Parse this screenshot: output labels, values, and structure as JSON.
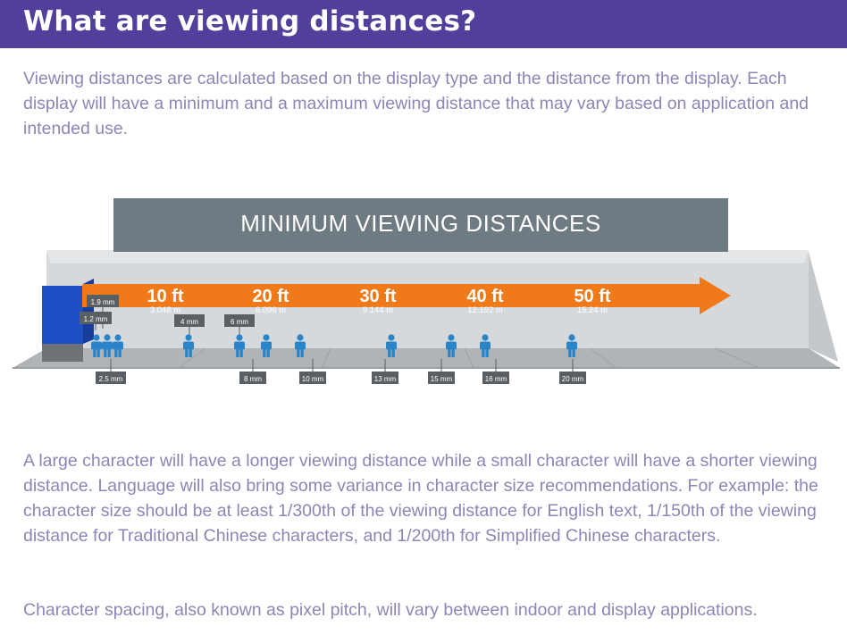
{
  "header": {
    "title": "What are viewing distances?"
  },
  "intro": "Viewing distances are calculated based on the display type and the distance from the display. Each display will have a minimum and a maximum viewing distance that may vary based on application and intended use.",
  "diagram": {
    "banner": "MINIMUM VIEWING DISTANCES",
    "distances": [
      {
        "ft": "10 ft",
        "m": "3.048 m"
      },
      {
        "ft": "20 ft",
        "m": "6.096 m"
      },
      {
        "ft": "30 ft",
        "m": "9.144 m"
      },
      {
        "ft": "40 ft",
        "m": "12.192 m"
      },
      {
        "ft": "50 ft",
        "m": "15.24 m"
      }
    ],
    "pitch_labels_upper": [
      "1.9 mm",
      "1.2 mm",
      "4 mm",
      "6 mm"
    ],
    "pitch_labels_lower": [
      "2.5 mm",
      "8 mm",
      "10 mm",
      "13 mm",
      "15 mm",
      "16 mm",
      "20 mm"
    ],
    "colors": {
      "arrow": "#f07a1a",
      "banner": "#6f7b82",
      "room": "#d2d5d7",
      "floor": "#a9adb0",
      "display": "#1e4fc4",
      "person": "#2a84c8",
      "tag": "#5a5f63"
    }
  },
  "body1": "A large character will have a longer viewing distance while a small character will have a shorter viewing distance. Language will also bring some variance in character size recommendations. For example: the character size should be at least 1/300th of the viewing distance for English text, 1/150th of the viewing distance for Traditional Chinese characters, and 1/200th for Simplified Chinese characters.",
  "body2": "Character spacing, also known as pixel pitch, will vary between indoor and display applications."
}
